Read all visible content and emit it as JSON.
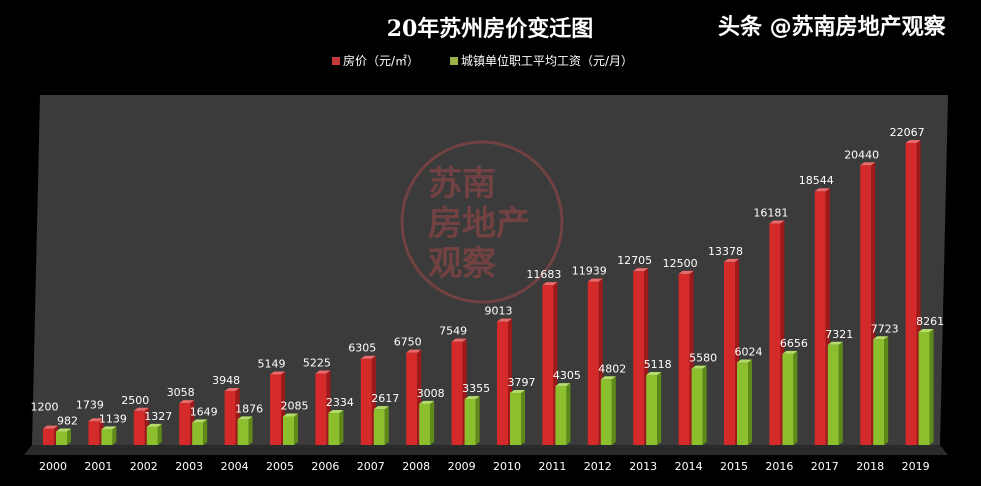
{
  "chart_data": {
    "type": "bar",
    "title": "20年苏州房价变迁图",
    "categories": [
      "2000",
      "2001",
      "2002",
      "2003",
      "2004",
      "2005",
      "2006",
      "2007",
      "2008",
      "2009",
      "2010",
      "2011",
      "2012",
      "2013",
      "2014",
      "2015",
      "2016",
      "2017",
      "2018",
      "2019"
    ],
    "series": [
      {
        "name": "房价（元/㎡）",
        "color": "#d42a2a",
        "values": [
          1200,
          1739,
          2500,
          3058,
          3948,
          5149,
          5225,
          6305,
          6750,
          7549,
          9013,
          11683,
          11939,
          12705,
          12500,
          13378,
          16181,
          18544,
          20440,
          22067
        ]
      },
      {
        "name": "城镇单位职工平均工资（元/月）",
        "color": "#8cbf2e",
        "values": [
          982,
          1139,
          1327,
          1649,
          1876,
          2085,
          2334,
          2617,
          3008,
          3355,
          3797,
          4305,
          4802,
          5118,
          5580,
          6024,
          6656,
          7321,
          7723,
          8261
        ]
      }
    ],
    "ylim": [
      0,
      24000
    ],
    "grid": false,
    "legend": "top",
    "data_labels": true,
    "style": "3d-column"
  },
  "watermark": {
    "text": "头条 @苏南房地产观察"
  },
  "stamp": {
    "lines": [
      "苏南",
      "房地产",
      "观察"
    ]
  }
}
